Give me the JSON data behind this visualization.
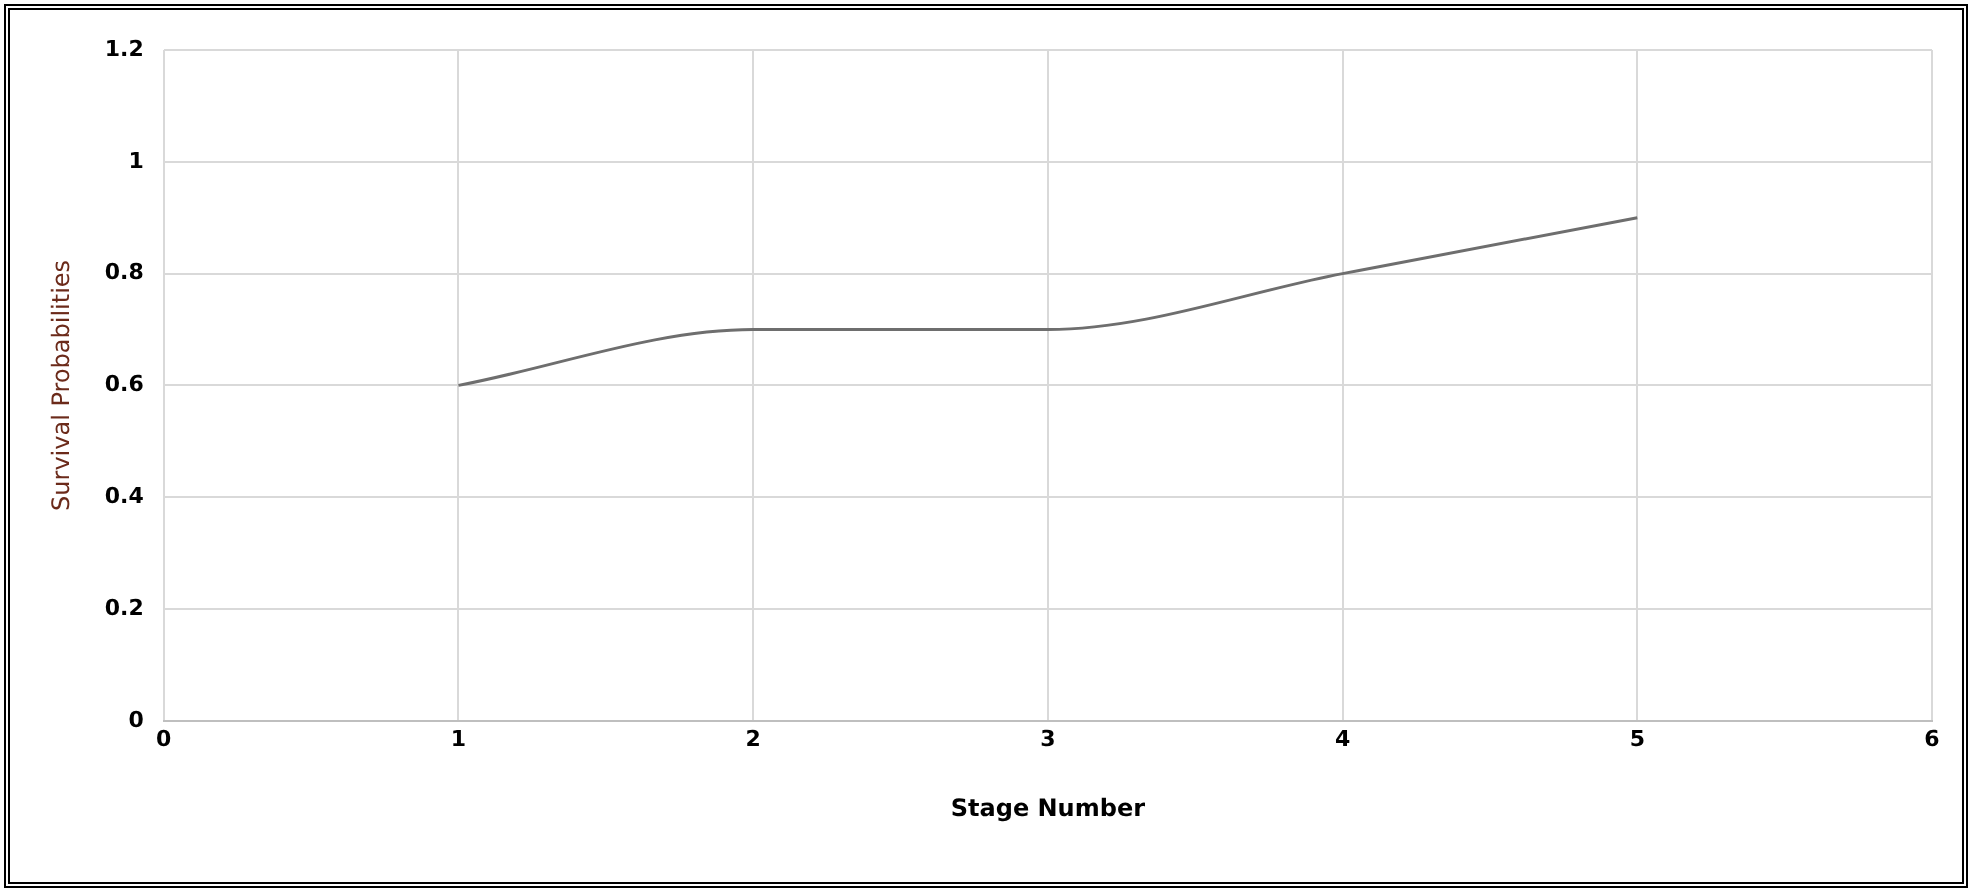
{
  "chart_data": {
    "type": "line",
    "xlabel": "Stage Number",
    "ylabel": "Survival Probabilities",
    "x": [
      1,
      2,
      3,
      4,
      5
    ],
    "series": [
      {
        "color": "#6e6e6e",
        "values": [
          0.6,
          0.7,
          0.7,
          0.8,
          0.9
        ]
      }
    ],
    "xlim": [
      0,
      6
    ],
    "xticks": [
      0,
      1,
      2,
      3,
      4,
      5,
      6
    ],
    "ylim": [
      0,
      1.2
    ],
    "yticks": [
      0,
      0.2,
      0.4,
      0.6,
      0.8,
      1,
      1.2
    ],
    "grid": true,
    "legend": false,
    "marker": "none",
    "line_style": "solid"
  }
}
